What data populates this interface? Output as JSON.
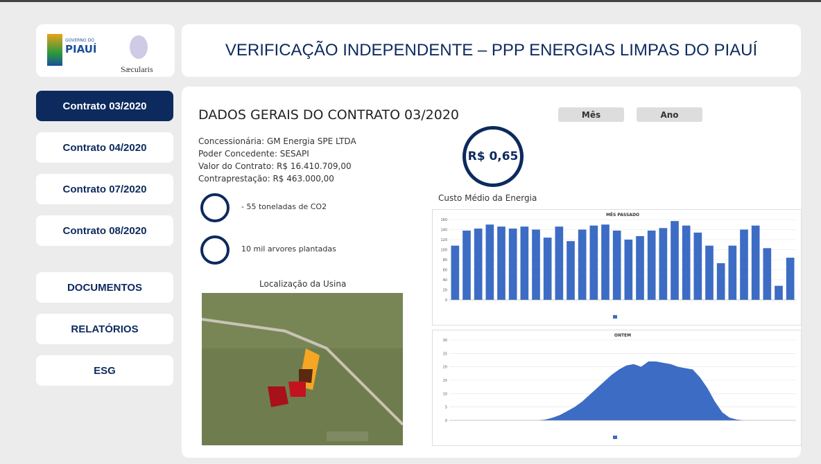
{
  "header": {
    "title": "VERIFICAÇÃO INDEPENDENTE – PPP ENERGIAS LIMPAS DO PIAUÍ",
    "logo_gov_top": "GOVERNO DO",
    "logo_gov_name": "PIAUÍ",
    "logo_partner": "Sæcularis"
  },
  "nav": [
    "Contrato 03/2020",
    "Contrato 04/2020",
    "Contrato 07/2020",
    "Contrato 08/2020"
  ],
  "nav_extra": [
    "DOCUMENTOS",
    "RELATÓRIOS",
    "ESG"
  ],
  "section": {
    "title": "DADOS GERAIS DO CONTRATO 03/2020",
    "buttons": [
      "Mês",
      "Ano"
    ],
    "info": [
      "Concessionária: GM Energia SPE LTDA",
      "Poder Concedente: SESAPI",
      "Valor do Contrato: R$ 16.410.709,00",
      "Contraprestação: R$ 463.000,00"
    ],
    "stats": [
      "- 55 toneladas de CO2",
      "10 mil arvores plantadas"
    ],
    "kpi": {
      "value": "R$ 0,65",
      "label": "Custo Médio da Energia"
    },
    "map_label": "Localização da Usina"
  },
  "chart_data": [
    {
      "type": "bar",
      "title": "MÊS PASSADO",
      "color": "#3d6cc4",
      "ylim": [
        0,
        160
      ],
      "yticks": [
        0,
        20,
        40,
        60,
        80,
        100,
        120,
        140,
        160
      ],
      "grid": true,
      "values": [
        108,
        138,
        142,
        150,
        146,
        142,
        146,
        140,
        124,
        146,
        117,
        140,
        148,
        150,
        138,
        120,
        127,
        138,
        143,
        157,
        148,
        134,
        108,
        73,
        108,
        140,
        148,
        103,
        28,
        84
      ]
    },
    {
      "type": "area",
      "title": "ONTEM",
      "color": "#3d6cc4",
      "ylim": [
        0,
        30
      ],
      "yticks": [
        0,
        5,
        10,
        15,
        20,
        25,
        30
      ],
      "grid": true,
      "values": [
        0,
        0,
        0,
        0,
        0,
        0,
        0,
        0,
        0,
        0,
        0,
        0,
        0,
        0.3,
        1,
        2,
        3.5,
        5,
        7,
        9.5,
        12,
        14.5,
        17,
        19,
        20.5,
        21,
        20,
        22,
        22,
        21.5,
        21,
        20,
        19.5,
        19,
        16,
        12,
        7,
        3,
        1,
        0.3,
        0,
        0,
        0,
        0,
        0,
        0,
        0,
        0
      ]
    }
  ]
}
